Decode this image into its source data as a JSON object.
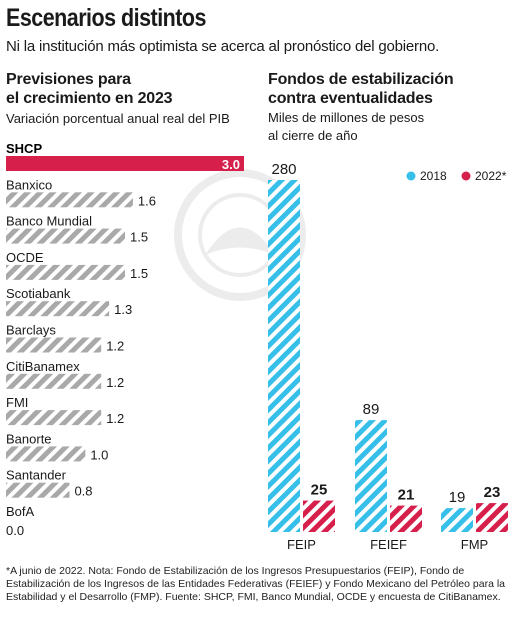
{
  "title": "Escenarios distintos",
  "subtitle": "Ni la institución más optimista se acerca al pronóstico del gobierno.",
  "left_panel": {
    "title_line1": "Previsiones para",
    "title_line2": "el crecimiento en 2023",
    "subtitle": "Variación porcentual anual real del PIB"
  },
  "right_panel": {
    "title_line1": "Fondos de estabilización",
    "title_line2": "contra eventualidades",
    "subtitle_line1": "Miles de millones de pesos",
    "subtitle_line2": "al cierre de año"
  },
  "footnote": "*A junio de 2022. Nota: Fondo de Estabilización de los Ingresos Presupuestarios (FEIP), Fondo de Estabilización de los Ingresos de las Entidades Federativas (FEIEF) y Fondo Mexicano del Petróleo para la Estabilidad y el Desarrollo (FMP). Fuente: SHCP, FMI, Banco Mundial, OCDE y encuesta de CitiBanamex.",
  "colors": {
    "highlight": "#d6204b",
    "gray_stripe": "#a9a9a9",
    "series_2018": "#36bfe8",
    "series_2022": "#d6204b"
  },
  "chart_data": [
    {
      "type": "bar",
      "orientation": "horizontal",
      "categories": [
        "SHCP",
        "Banxico",
        "Banco Mundial",
        "OCDE",
        "Scotiabank",
        "Barclays",
        "CitiBanamex",
        "FMI",
        "Banorte",
        "Santander",
        "BofA"
      ],
      "values": [
        3.0,
        1.6,
        1.5,
        1.5,
        1.3,
        1.2,
        1.2,
        1.2,
        1.0,
        0.8,
        0.0
      ],
      "value_labels": [
        "3.0",
        "1.6",
        "1.5",
        "1.5",
        "1.3",
        "1.2",
        "1.2",
        "1.2",
        "1.0",
        "0.8",
        "0.0"
      ],
      "highlight_category": "SHCP"
    },
    {
      "type": "bar",
      "orientation": "vertical",
      "categories": [
        "FEIP",
        "FEIEF",
        "FMP"
      ],
      "series": [
        {
          "name": "2018",
          "values": [
            280,
            89,
            19
          ],
          "value_labels": [
            "280",
            "89",
            "19"
          ]
        },
        {
          "name": "2022*",
          "values": [
            25,
            21,
            23
          ],
          "value_labels": [
            "25",
            "21",
            "23"
          ]
        }
      ],
      "legend_position": "top-right"
    }
  ]
}
